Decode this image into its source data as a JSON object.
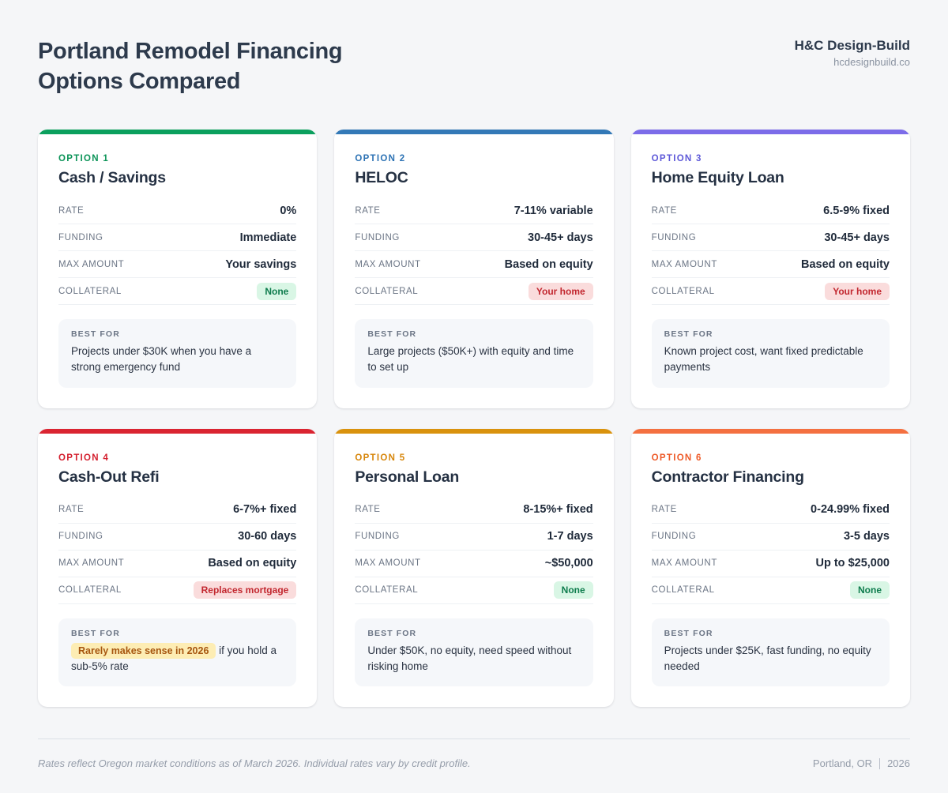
{
  "theme": {
    "page_bg": "#f5f6f8",
    "card_bg": "#ffffff",
    "heading_color": "#2d3a4c",
    "value_color": "#1f2a3a",
    "label_color": "#6b7585",
    "badge_green_bg": "#d9f6e5",
    "badge_green_text": "#0e7c4d",
    "badge_red_bg": "#fadcdc",
    "badge_red_text": "#c2272f",
    "highlight_bg": "#fdedb4",
    "highlight_text": "#a6550e"
  },
  "header": {
    "title_line1": "Portland Remodel Financing",
    "title_line2": "Options Compared",
    "brand": "H&C Design-Build",
    "brand_url": "hcdesignbuild.co"
  },
  "labels": {
    "rate": "RATE",
    "funding": "FUNDING",
    "max_amount": "MAX AMOUNT",
    "collateral": "COLLATERAL",
    "best_for": "BEST FOR"
  },
  "options": [
    {
      "option_label": "OPTION 1",
      "title": "Cash / Savings",
      "accent": "#0a9357",
      "border_color": "#0ba05e",
      "rate": "0%",
      "funding": "Immediate",
      "max_amount": "Your savings",
      "collateral": "None",
      "collateral_type": "green",
      "best_for_text": "Projects under $30K when you have a strong emergency fund"
    },
    {
      "option_label": "OPTION 2",
      "title": "HELOC",
      "accent": "#2c72b4",
      "border_color": "#3379b7",
      "rate": "7-11% variable",
      "funding": "30-45+ days",
      "max_amount": "Based on equity",
      "collateral": "Your home",
      "collateral_type": "red",
      "best_for_text": "Large projects ($50K+) with equity and time to set up"
    },
    {
      "option_label": "OPTION 3",
      "title": "Home Equity Loan",
      "accent": "#5d58d8",
      "border_color": "#7c6ce9",
      "rate": "6.5-9% fixed",
      "funding": "30-45+ days",
      "max_amount": "Based on equity",
      "collateral": "Your home",
      "collateral_type": "red",
      "best_for_text": "Known project cost, want fixed predictable payments"
    },
    {
      "option_label": "OPTION 4",
      "title": "Cash-Out Refi",
      "accent": "#d41f2e",
      "border_color": "#da2431",
      "rate": "6-7%+ fixed",
      "funding": "30-60 days",
      "max_amount": "Based on equity",
      "collateral": "Replaces mortgage",
      "collateral_type": "red",
      "best_for_highlight": "Rarely makes sense in 2026",
      "best_for_text": "if you hold a sub-5% rate"
    },
    {
      "option_label": "OPTION 5",
      "title": "Personal Loan",
      "accent": "#d7860b",
      "border_color": "#d9920d",
      "rate": "8-15%+ fixed",
      "funding": "1-7 days",
      "max_amount": "~$50,000",
      "collateral": "None",
      "collateral_type": "green",
      "best_for_text": "Under $50K, no equity, need speed without risking home"
    },
    {
      "option_label": "OPTION 6",
      "title": "Contractor Financing",
      "accent": "#ee5a28",
      "border_color": "#f47040",
      "rate": "0-24.99% fixed",
      "funding": "3-5 days",
      "max_amount": "Up to $25,000",
      "collateral": "None",
      "collateral_type": "green",
      "best_for_text": "Projects under $25K, fast funding, no equity needed"
    }
  ],
  "footer": {
    "note": "Rates reflect Oregon market conditions as of March 2026. Individual rates vary by credit profile.",
    "location": "Portland, OR",
    "year": "2026"
  }
}
